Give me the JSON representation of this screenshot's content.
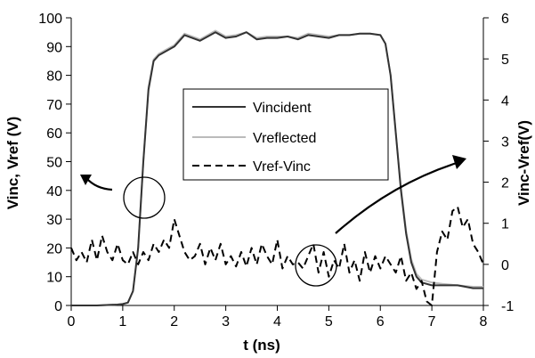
{
  "chart_data": {
    "type": "line",
    "xlabel": "t (ns)",
    "ylabel_left": "Vinc, Vref (V)",
    "ylabel_right": "Vinc-Vref(V)",
    "xlim": [
      0,
      8
    ],
    "ylim_left": [
      0,
      100
    ],
    "ylim_right": [
      -1,
      6
    ],
    "x_ticks": [
      "0",
      "1",
      "2",
      "3",
      "4",
      "5",
      "6",
      "7",
      "8"
    ],
    "y_left_ticks": [
      "0",
      "10",
      "20",
      "30",
      "40",
      "50",
      "60",
      "70",
      "80",
      "90",
      "100"
    ],
    "y_right_ticks": [
      "-1",
      "0",
      "1",
      "2",
      "3",
      "4",
      "5",
      "6"
    ],
    "grid": false,
    "legend_position": "center",
    "series": [
      {
        "name": "Vincident",
        "axis": "left",
        "color": "#333333",
        "dash": "solid",
        "x": [
          0,
          0.5,
          0.9,
          1.0,
          1.1,
          1.2,
          1.3,
          1.4,
          1.5,
          1.6,
          1.7,
          1.8,
          2.0,
          2.2,
          2.5,
          2.8,
          3.0,
          3.2,
          3.4,
          3.6,
          3.8,
          4.0,
          4.2,
          4.4,
          4.6,
          4.8,
          5.0,
          5.2,
          5.4,
          5.6,
          5.8,
          6.0,
          6.1,
          6.2,
          6.3,
          6.4,
          6.5,
          6.6,
          6.7,
          6.8,
          7.0,
          7.2,
          7.5,
          7.8,
          8.0
        ],
        "y": [
          0,
          0,
          0.3,
          0.5,
          1,
          5,
          20,
          50,
          75,
          85,
          87,
          88,
          90,
          94,
          92,
          95,
          93,
          93.5,
          95,
          92.5,
          93,
          93,
          93.5,
          92.5,
          94,
          93.5,
          93,
          94,
          94,
          94.5,
          94.5,
          94,
          91,
          80,
          60,
          40,
          25,
          15,
          10,
          8,
          7,
          7,
          7,
          6,
          6
        ]
      },
      {
        "name": "Vreflected",
        "axis": "left",
        "color": "#bbbbbb",
        "dash": "solid",
        "x": [
          0,
          0.5,
          0.9,
          1.0,
          1.1,
          1.2,
          1.3,
          1.4,
          1.5,
          1.6,
          1.7,
          1.8,
          2.0,
          2.2,
          2.5,
          2.8,
          3.0,
          3.2,
          3.4,
          3.6,
          3.8,
          4.0,
          4.2,
          4.4,
          4.6,
          4.8,
          5.0,
          5.2,
          5.4,
          5.6,
          5.8,
          6.0,
          6.1,
          6.2,
          6.3,
          6.4,
          6.5,
          6.6,
          6.7,
          6.8,
          7.0,
          7.2,
          7.5,
          7.8,
          8.0
        ],
        "y": [
          0,
          0,
          0.3,
          0.5,
          1,
          5,
          20,
          50,
          76,
          85.5,
          87.5,
          88.5,
          90.5,
          94.5,
          92.5,
          95.5,
          93.5,
          94,
          95,
          93,
          93.5,
          93.5,
          93.5,
          93,
          94.5,
          94,
          93.5,
          94,
          94,
          94.5,
          94.5,
          94,
          91,
          80,
          60,
          41,
          26,
          16,
          11,
          9,
          8,
          7.5,
          7,
          6.5,
          6.5
        ]
      },
      {
        "name": "Vref-Vinc",
        "axis": "right",
        "color": "#000000",
        "dash": "8,5",
        "x": [
          0,
          0.1,
          0.2,
          0.3,
          0.4,
          0.5,
          0.6,
          0.7,
          0.8,
          0.9,
          1.0,
          1.1,
          1.2,
          1.3,
          1.4,
          1.5,
          1.6,
          1.7,
          1.8,
          1.9,
          2.0,
          2.1,
          2.2,
          2.3,
          2.4,
          2.5,
          2.6,
          2.7,
          2.8,
          2.9,
          3.0,
          3.1,
          3.2,
          3.3,
          3.4,
          3.5,
          3.6,
          3.7,
          3.8,
          3.9,
          4.0,
          4.1,
          4.2,
          4.3,
          4.4,
          4.5,
          4.6,
          4.7,
          4.8,
          4.9,
          5.0,
          5.1,
          5.2,
          5.3,
          5.4,
          5.5,
          5.6,
          5.7,
          5.8,
          5.9,
          6.0,
          6.1,
          6.2,
          6.3,
          6.4,
          6.5,
          6.6,
          6.7,
          6.8,
          6.9,
          7.0,
          7.1,
          7.2,
          7.3,
          7.4,
          7.5,
          7.6,
          7.7,
          7.8,
          7.9,
          8.0
        ],
        "y": [
          0.4,
          0.1,
          0.3,
          0.05,
          0.6,
          0.1,
          0.7,
          0.3,
          0.1,
          0.5,
          0.1,
          0.0,
          0.3,
          0.0,
          0.3,
          0.1,
          0.5,
          0.3,
          0.6,
          0.4,
          1.1,
          0.7,
          0.3,
          0.1,
          0.2,
          0.5,
          0.0,
          0.4,
          0.1,
          0.5,
          0.0,
          0.2,
          -0.05,
          0.3,
          -0.05,
          0.4,
          0.0,
          0.5,
          0.2,
          0.0,
          0.6,
          -0.1,
          0.2,
          0.0,
          0.05,
          -0.1,
          0.2,
          0.5,
          -0.2,
          0.3,
          -0.3,
          0.1,
          -0.1,
          0.5,
          -0.2,
          0.1,
          -0.4,
          0.3,
          -0.2,
          0.2,
          -0.1,
          0.2,
          0.0,
          -0.2,
          0.2,
          -0.4,
          -0.2,
          -0.6,
          -0.4,
          -0.9,
          -1.0,
          0.3,
          0.8,
          0.6,
          1.3,
          1.4,
          0.9,
          1.1,
          0.5,
          0.3,
          0.0
        ]
      }
    ]
  }
}
